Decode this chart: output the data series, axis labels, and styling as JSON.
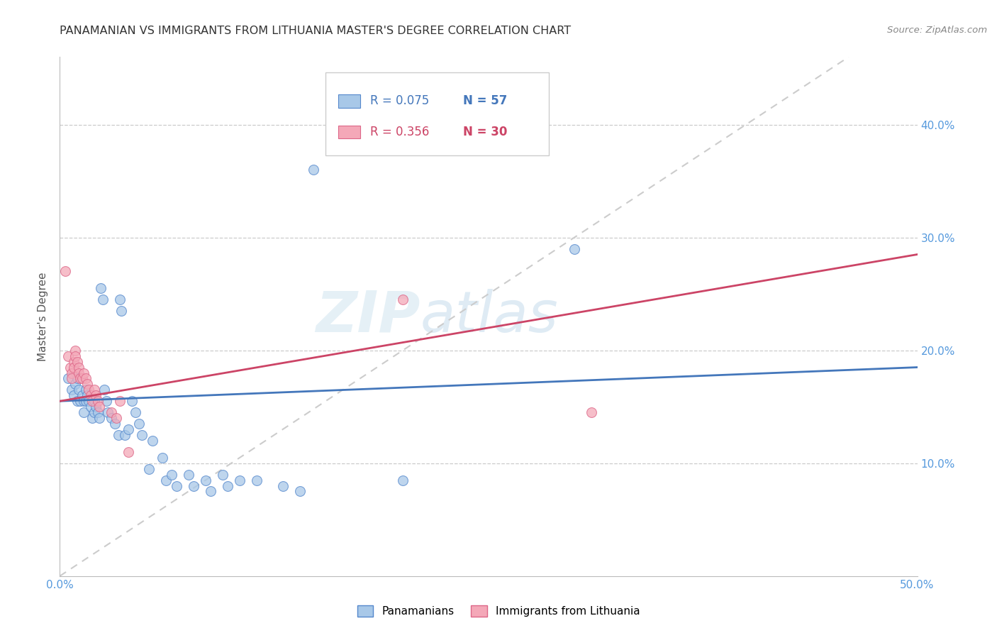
{
  "title": "PANAMANIAN VS IMMIGRANTS FROM LITHUANIA MASTER'S DEGREE CORRELATION CHART",
  "source_text": "Source: ZipAtlas.com",
  "ylabel": "Master's Degree",
  "xlim": [
    0.0,
    0.5
  ],
  "ylim": [
    0.0,
    0.46
  ],
  "xtick_values": [
    0.0,
    0.1,
    0.2,
    0.3,
    0.4,
    0.5
  ],
  "xtick_labels": [
    "0.0%",
    "",
    "",
    "",
    "",
    "50.0%"
  ],
  "ytick_values": [
    0.1,
    0.2,
    0.3,
    0.4
  ],
  "ytick_labels": [
    "10.0%",
    "20.0%",
    "30.0%",
    "40.0%"
  ],
  "legend_r1": "R = 0.075",
  "legend_n1": "N = 57",
  "legend_r2": "R = 0.356",
  "legend_n2": "N = 30",
  "legend_label1": "Panamanians",
  "legend_label2": "Immigrants from Lithuania",
  "color_blue": "#a8c8e8",
  "color_pink": "#f4a8b8",
  "edge_blue": "#5588cc",
  "edge_pink": "#dd6688",
  "trendline_blue": "#4477bb",
  "trendline_pink": "#cc4466",
  "trendline_dash": "#cccccc",
  "watermark_zip": "ZIP",
  "watermark_atlas": "atlas",
  "blue_scatter": [
    [
      0.005,
      0.175
    ],
    [
      0.007,
      0.165
    ],
    [
      0.008,
      0.16
    ],
    [
      0.009,
      0.17
    ],
    [
      0.01,
      0.175
    ],
    [
      0.01,
      0.155
    ],
    [
      0.011,
      0.165
    ],
    [
      0.012,
      0.155
    ],
    [
      0.013,
      0.16
    ],
    [
      0.014,
      0.155
    ],
    [
      0.014,
      0.145
    ],
    [
      0.015,
      0.165
    ],
    [
      0.015,
      0.155
    ],
    [
      0.016,
      0.16
    ],
    [
      0.017,
      0.155
    ],
    [
      0.018,
      0.15
    ],
    [
      0.019,
      0.14
    ],
    [
      0.02,
      0.145
    ],
    [
      0.02,
      0.155
    ],
    [
      0.021,
      0.15
    ],
    [
      0.022,
      0.145
    ],
    [
      0.023,
      0.14
    ],
    [
      0.024,
      0.255
    ],
    [
      0.025,
      0.245
    ],
    [
      0.026,
      0.165
    ],
    [
      0.027,
      0.155
    ],
    [
      0.028,
      0.145
    ],
    [
      0.03,
      0.14
    ],
    [
      0.032,
      0.135
    ],
    [
      0.034,
      0.125
    ],
    [
      0.035,
      0.245
    ],
    [
      0.036,
      0.235
    ],
    [
      0.038,
      0.125
    ],
    [
      0.04,
      0.13
    ],
    [
      0.042,
      0.155
    ],
    [
      0.044,
      0.145
    ],
    [
      0.046,
      0.135
    ],
    [
      0.048,
      0.125
    ],
    [
      0.052,
      0.095
    ],
    [
      0.054,
      0.12
    ],
    [
      0.06,
      0.105
    ],
    [
      0.062,
      0.085
    ],
    [
      0.065,
      0.09
    ],
    [
      0.068,
      0.08
    ],
    [
      0.075,
      0.09
    ],
    [
      0.078,
      0.08
    ],
    [
      0.085,
      0.085
    ],
    [
      0.088,
      0.075
    ],
    [
      0.095,
      0.09
    ],
    [
      0.098,
      0.08
    ],
    [
      0.105,
      0.085
    ],
    [
      0.115,
      0.085
    ],
    [
      0.13,
      0.08
    ],
    [
      0.14,
      0.075
    ],
    [
      0.148,
      0.36
    ],
    [
      0.2,
      0.085
    ],
    [
      0.3,
      0.29
    ]
  ],
  "pink_scatter": [
    [
      0.003,
      0.27
    ],
    [
      0.005,
      0.195
    ],
    [
      0.006,
      0.185
    ],
    [
      0.007,
      0.18
    ],
    [
      0.007,
      0.175
    ],
    [
      0.008,
      0.19
    ],
    [
      0.008,
      0.185
    ],
    [
      0.009,
      0.2
    ],
    [
      0.009,
      0.195
    ],
    [
      0.01,
      0.19
    ],
    [
      0.011,
      0.185
    ],
    [
      0.011,
      0.18
    ],
    [
      0.012,
      0.175
    ],
    [
      0.013,
      0.175
    ],
    [
      0.014,
      0.18
    ],
    [
      0.015,
      0.175
    ],
    [
      0.016,
      0.17
    ],
    [
      0.017,
      0.165
    ],
    [
      0.018,
      0.16
    ],
    [
      0.019,
      0.155
    ],
    [
      0.02,
      0.165
    ],
    [
      0.021,
      0.16
    ],
    [
      0.022,
      0.155
    ],
    [
      0.023,
      0.15
    ],
    [
      0.03,
      0.145
    ],
    [
      0.033,
      0.14
    ],
    [
      0.035,
      0.155
    ],
    [
      0.04,
      0.11
    ],
    [
      0.2,
      0.245
    ],
    [
      0.31,
      0.145
    ]
  ],
  "blue_trend": [
    0.0,
    0.5,
    0.155,
    0.185
  ],
  "pink_trend": [
    0.0,
    0.5,
    0.155,
    0.285
  ],
  "diag_trend": [
    0.0,
    0.46,
    0.0,
    0.46
  ]
}
